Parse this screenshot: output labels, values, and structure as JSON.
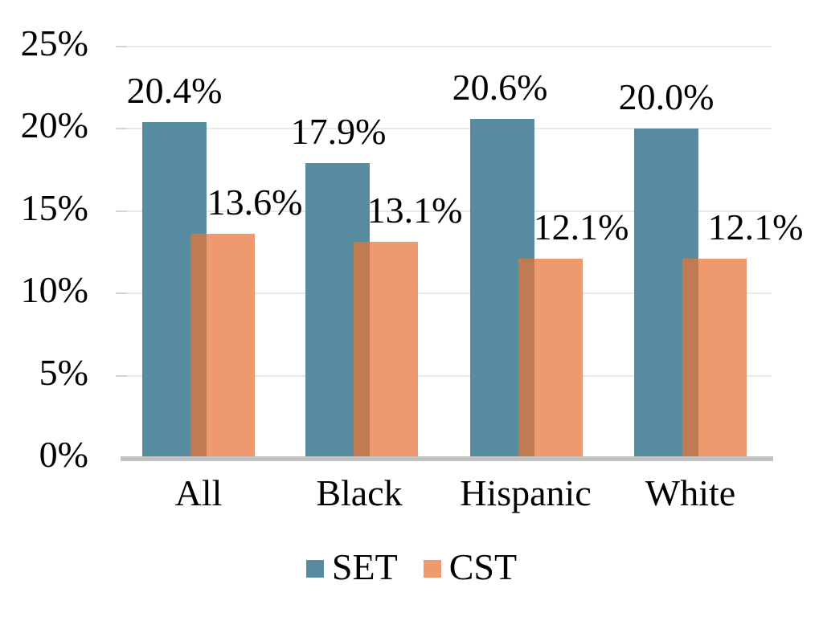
{
  "chart_data": {
    "type": "bar",
    "title": "",
    "xlabel": "",
    "ylabel": "",
    "categories": [
      "All",
      "Black",
      "Hispanic",
      "White"
    ],
    "series": [
      {
        "name": "SET",
        "color": "#578ba0",
        "values": [
          20.4,
          17.9,
          20.6,
          20.0
        ],
        "labels": [
          "20.4%",
          "17.9%",
          "20.6%",
          "20.0%"
        ]
      },
      {
        "name": "CST",
        "color": "#ef9a6e",
        "values": [
          13.6,
          13.1,
          12.1,
          12.1
        ],
        "labels": [
          "13.6%",
          "13.1%",
          "12.1%",
          "12.1%"
        ]
      }
    ],
    "overlap_color": "#c17b53",
    "ylim": [
      0,
      25
    ],
    "y_tick_values": [
      25,
      20,
      15,
      10,
      5,
      0
    ],
    "y_ticks": [
      "25%",
      "20%",
      "15%",
      "10%",
      "5%",
      "0%"
    ],
    "grid": true,
    "bar_overlap": "CST bars partially overlap SET bars on the right side",
    "legend_position": "bottom"
  },
  "legend": {
    "items": [
      {
        "label": "SET",
        "color": "#578ba0"
      },
      {
        "label": "CST",
        "color": "#ef9a6e"
      }
    ]
  }
}
